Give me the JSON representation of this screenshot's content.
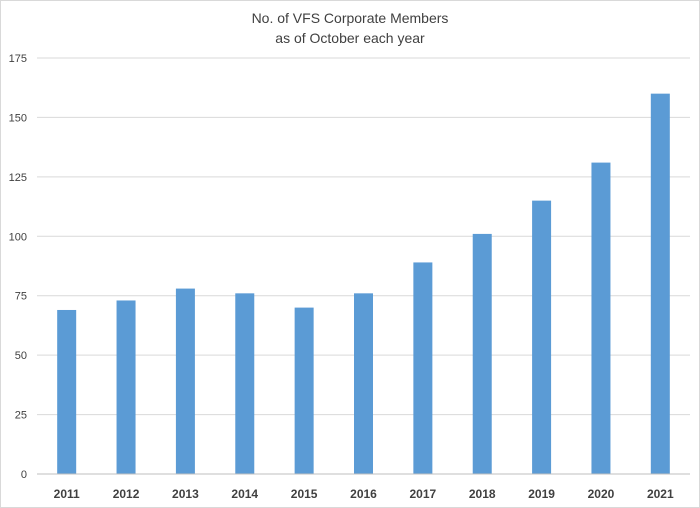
{
  "chart_data": {
    "type": "bar",
    "title": "No. of VFS Corporate Members",
    "subtitle": "as of October each year",
    "xlabel": "",
    "ylabel": "",
    "categories": [
      "2011",
      "2012",
      "2013",
      "2014",
      "2015",
      "2016",
      "2017",
      "2018",
      "2019",
      "2020",
      "2021"
    ],
    "values": [
      69,
      73,
      78,
      76,
      70,
      76,
      89,
      101,
      115,
      131,
      160
    ],
    "ylim": [
      0,
      175
    ],
    "yticks": [
      0,
      25,
      50,
      75,
      100,
      125,
      150,
      175
    ],
    "grid": true,
    "legend": "none",
    "bar_color": "#5b9bd5",
    "grid_color": "#d9d9d9"
  }
}
